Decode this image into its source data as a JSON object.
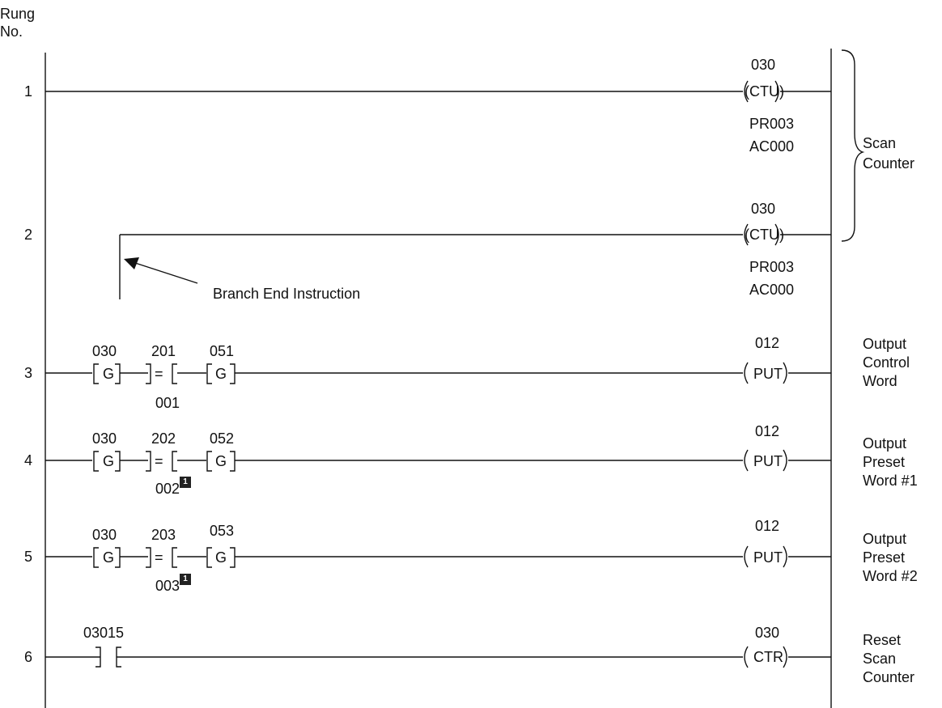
{
  "header": {
    "rung_label": "Rung",
    "no_label": "No."
  },
  "rungs": [
    {
      "num": "1",
      "output_addr": "030",
      "output_instr": "(CTU)",
      "output_line2": "PR003",
      "output_line3": "AC000"
    },
    {
      "num": "2",
      "output_addr": "030",
      "output_instr": "(CTU)",
      "output_line2": "PR003",
      "output_line3": "AC000"
    },
    {
      "num": "3",
      "g1_addr": "030",
      "g1_text": "G",
      "cmp_addr": "201",
      "cmp_text": "=",
      "cmp_ref": "001",
      "g2_addr": "051",
      "g2_text": "G",
      "output_addr": "012",
      "output_instr": "PUT"
    },
    {
      "num": "4",
      "g1_addr": "030",
      "g1_text": "G",
      "cmp_addr": "202",
      "cmp_text": "=",
      "cmp_ref": "002",
      "badge": "1",
      "g2_addr": "052",
      "g2_text": "G",
      "output_addr": "012",
      "output_instr": "PUT"
    },
    {
      "num": "5",
      "g1_addr": "030",
      "g1_text": "G",
      "cmp_addr": "203",
      "cmp_text": "=",
      "cmp_ref": "003",
      "badge": "1",
      "g2_addr": "053",
      "g2_text": "G",
      "output_addr": "012",
      "output_instr": "PUT"
    },
    {
      "num": "6",
      "contact_addr": "03015",
      "output_addr": "030",
      "output_instr": "CTR"
    }
  ],
  "annotations": {
    "branch_end": "Branch End Instruction",
    "scan_counter": [
      "Scan",
      "Counter"
    ],
    "rung3": [
      "Output",
      "Control",
      "Word"
    ],
    "rung4": [
      "Output",
      "Preset",
      "Word #1"
    ],
    "rung5": [
      "Output",
      "Preset",
      "Word #2"
    ],
    "rung6": [
      "Reset",
      "Scan",
      "Counter"
    ]
  }
}
